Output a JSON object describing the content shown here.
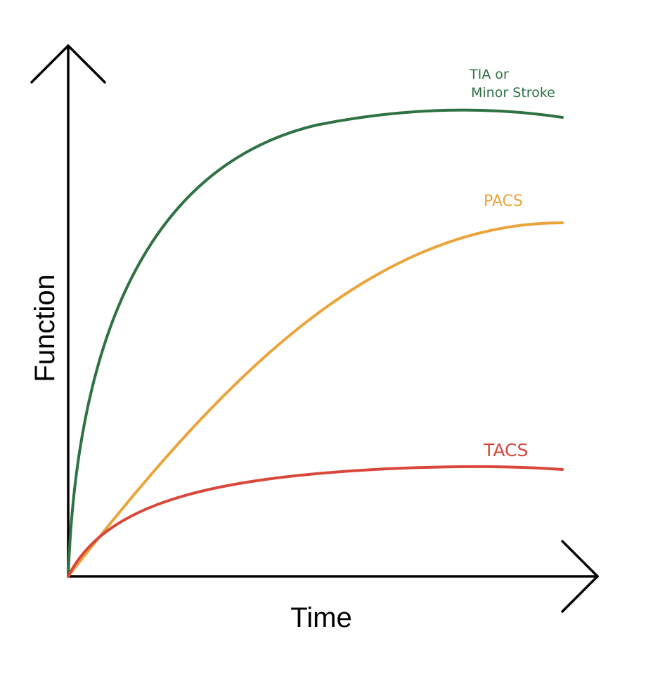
{
  "axes": {
    "x_label": "Time",
    "y_label": "Function"
  },
  "curves": [
    {
      "label_lines": [
        "TIA or",
        "Minor Stroke"
      ]
    },
    {
      "label_lines": [
        "PACS"
      ]
    },
    {
      "label_lines": [
        "TACS"
      ]
    }
  ]
}
